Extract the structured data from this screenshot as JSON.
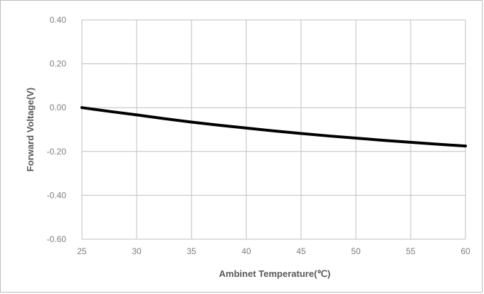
{
  "chart_data": {
    "type": "line",
    "title": "",
    "xlabel": "Ambinet Temperature(℃)",
    "ylabel": "Forward Voltage(V)",
    "xlim": [
      25,
      60
    ],
    "ylim": [
      -0.6,
      0.4
    ],
    "x_ticks": [
      "25",
      "30",
      "35",
      "40",
      "45",
      "50",
      "55",
      "60"
    ],
    "y_ticks": [
      "0.40",
      "0.20",
      "0.00",
      "-0.20",
      "-0.40",
      "-0.60"
    ],
    "grid": true,
    "legend": "none",
    "series": [
      {
        "x": [
          25,
          27.5,
          30,
          32.5,
          35,
          37.5,
          40,
          42.5,
          45,
          47.5,
          50,
          52.5,
          55,
          57.5,
          60
        ],
        "y": [
          0.0,
          -0.017,
          -0.033,
          -0.05,
          -0.066,
          -0.08,
          -0.093,
          -0.106,
          -0.118,
          -0.129,
          -0.139,
          -0.149,
          -0.158,
          -0.167,
          -0.175
        ],
        "color": "#000000"
      }
    ]
  },
  "colors": {
    "grid": "#bfbfbf",
    "line": "#000000",
    "tick_text": "#7f7f7f",
    "axis_title": "#595959"
  }
}
